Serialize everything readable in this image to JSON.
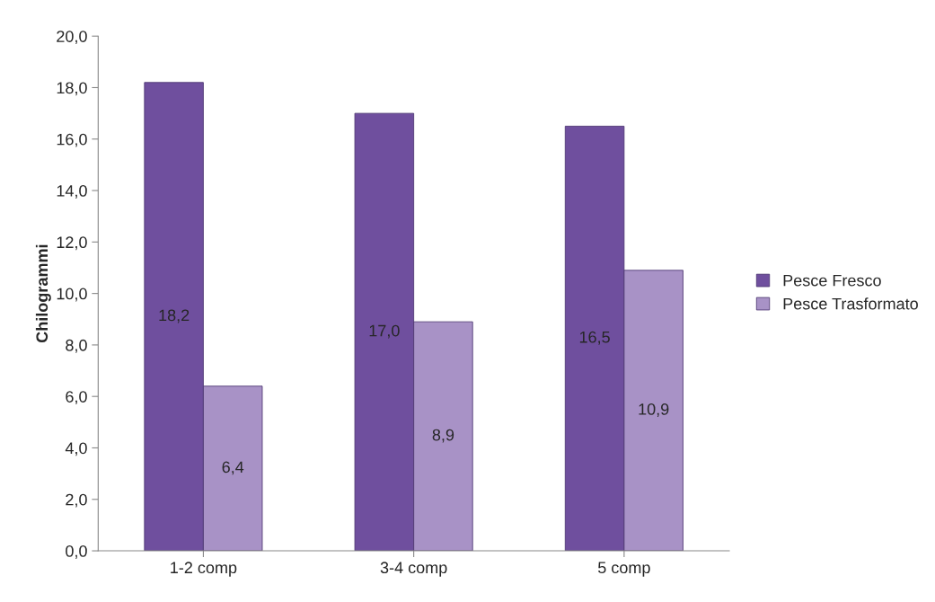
{
  "chart_data": {
    "type": "bar",
    "ylabel": "Chilogrammi",
    "categories": [
      "1-2 comp",
      "3-4 comp",
      "5 comp"
    ],
    "series": [
      {
        "name": "Pesce Fresco",
        "color": "#6f4f9e",
        "values": [
          18.2,
          17.0,
          16.5
        ],
        "value_labels": [
          "18,2",
          "17,0",
          "16,5"
        ]
      },
      {
        "name": "Pesce Trasformato",
        "color": "#a892c6",
        "values": [
          6.4,
          8.9,
          10.9
        ],
        "value_labels": [
          "6,4",
          "8,9",
          "10,9"
        ]
      }
    ],
    "ylim": [
      0,
      20
    ],
    "yticks": [
      {
        "value": 0,
        "label": "0,0"
      },
      {
        "value": 2,
        "label": "2,0"
      },
      {
        "value": 4,
        "label": "4,0"
      },
      {
        "value": 6,
        "label": "6,0"
      },
      {
        "value": 8,
        "label": "8,0"
      },
      {
        "value": 10,
        "label": "10,0"
      },
      {
        "value": 12,
        "label": "12,0"
      },
      {
        "value": 14,
        "label": "14,0"
      },
      {
        "value": 16,
        "label": "16,0"
      },
      {
        "value": 18,
        "label": "18,0"
      },
      {
        "value": 20,
        "label": "20,0"
      }
    ],
    "grid": false,
    "legend": "right"
  }
}
